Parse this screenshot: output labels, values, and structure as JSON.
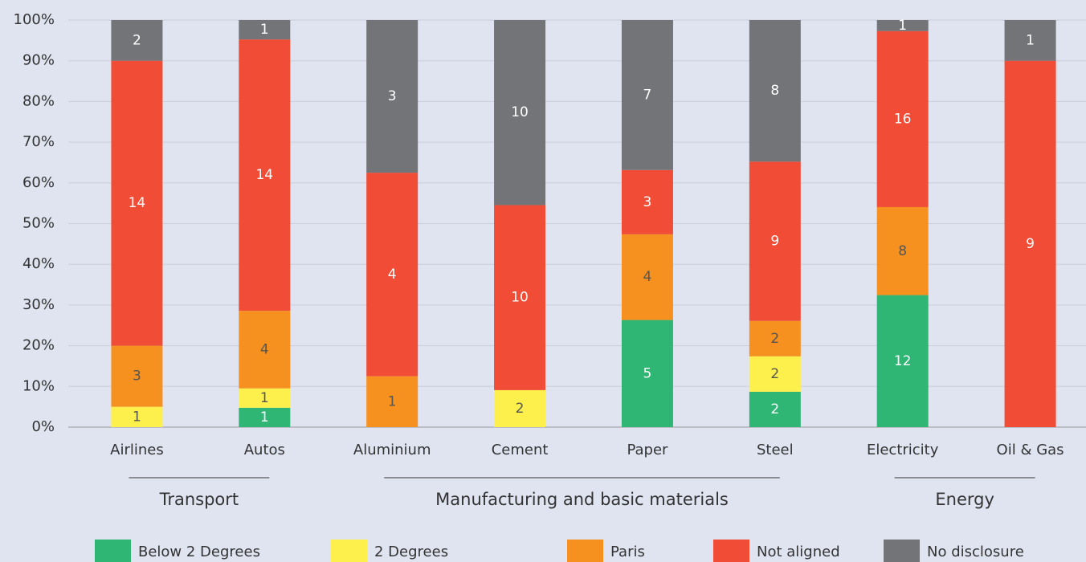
{
  "chart_data": {
    "type": "bar",
    "stacked": "percent",
    "categories": [
      "Airlines",
      "Autos",
      "Aluminium",
      "Cement",
      "Paper",
      "Steel",
      "Electricity",
      "Oil & Gas"
    ],
    "groups": [
      {
        "name": "Transport",
        "from": 0,
        "to": 1
      },
      {
        "name": "Manufacturing and basic materials",
        "from": 2,
        "to": 5
      },
      {
        "name": "Energy",
        "from": 6,
        "to": 7
      }
    ],
    "series": [
      {
        "name": "Below 2 Degrees",
        "color": "#2fb574",
        "label_color": "#ffffff",
        "values": [
          0,
          1,
          0,
          0,
          5,
          2,
          12,
          0
        ]
      },
      {
        "name": "2 Degrees",
        "color": "#fdf04d",
        "label_color": "#555555",
        "values": [
          1,
          1,
          0,
          2,
          0,
          2,
          0,
          0
        ]
      },
      {
        "name": "Paris",
        "color": "#f6911f",
        "label_color": "#555555",
        "values": [
          3,
          4,
          1,
          0,
          4,
          2,
          8,
          0
        ]
      },
      {
        "name": "Not aligned",
        "color": "#f04c36",
        "label_color": "#ffffff",
        "values": [
          14,
          14,
          4,
          10,
          3,
          9,
          16,
          9
        ]
      },
      {
        "name": "No disclosure",
        "color": "#737477",
        "label_color": "#ffffff",
        "values": [
          2,
          1,
          3,
          10,
          7,
          8,
          1,
          1
        ]
      }
    ],
    "ylim": [
      0,
      100
    ],
    "yticks": [
      {
        "value": 0,
        "label": "0%"
      },
      {
        "value": 10,
        "label": "10%"
      },
      {
        "value": 20,
        "label": "20%"
      },
      {
        "value": 30,
        "label": "30%"
      },
      {
        "value": 40,
        "label": "40%"
      },
      {
        "value": 50,
        "label": "50%"
      },
      {
        "value": 60,
        "label": "60%"
      },
      {
        "value": 70,
        "label": "70%"
      },
      {
        "value": 80,
        "label": "80%"
      },
      {
        "value": 90,
        "label": "90%"
      },
      {
        "value": 100,
        "label": "100%"
      }
    ],
    "grid": true
  }
}
